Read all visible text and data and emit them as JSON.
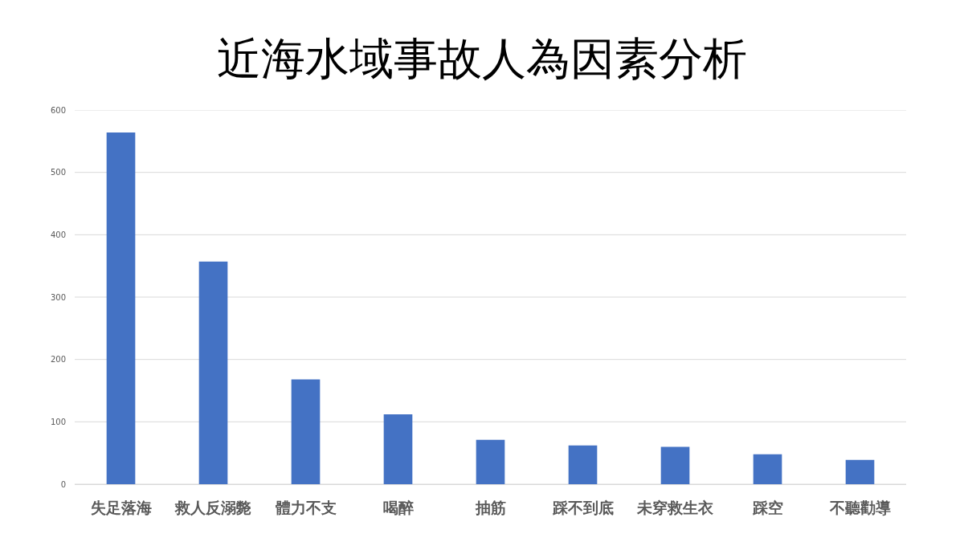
{
  "chart_data": {
    "type": "bar",
    "title": "近海水域事故人為因素分析",
    "categories": [
      "失足落海",
      "救人反溺斃",
      "體力不支",
      "喝醉",
      "抽筋",
      "踩不到底",
      "未穿救生衣",
      "踩空",
      "不聽勸導"
    ],
    "values": [
      564,
      357,
      168,
      112,
      71,
      62,
      60,
      48,
      39
    ],
    "color": "#4472c4",
    "ylim": [
      0,
      600
    ],
    "yticks": [
      0,
      100,
      200,
      300,
      400,
      500,
      600
    ],
    "grid": "y"
  }
}
